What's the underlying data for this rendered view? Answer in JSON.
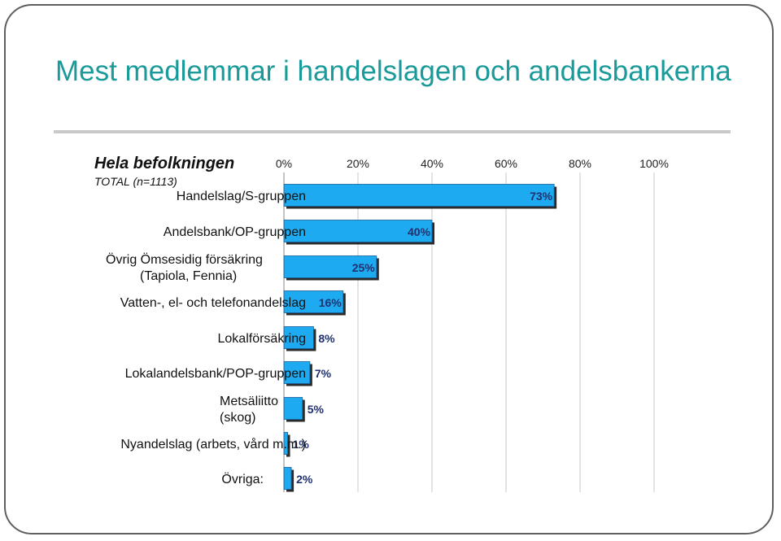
{
  "slide": {
    "title": "Mest medlemmar i handelslagen och andelsbankerna",
    "heading": "Hela befolkningen",
    "subheading": "TOTAL (n=1113)"
  },
  "colors": {
    "bar": "#1eaaf0",
    "title": "#1a9a9a",
    "value_label": "#1f3170"
  },
  "chart_data": {
    "type": "bar",
    "orientation": "horizontal",
    "title": "",
    "xlabel": "",
    "ylabel": "",
    "xlim": [
      0,
      100
    ],
    "ticks": [
      "0%",
      "20%",
      "40%",
      "60%",
      "80%",
      "100%"
    ],
    "grid": true,
    "categories": [
      [
        "Handelslag/S-gruppen"
      ],
      [
        "Andelsbank/OP-gruppen"
      ],
      [
        "Övrig Ömsesidig försäkring",
        "(Tapiola, Fennia)"
      ],
      [
        "Vatten-, el- och telefonandelslag"
      ],
      [
        "Lokalförsäkring"
      ],
      [
        "Lokalandelsbank/POP-gruppen"
      ],
      [
        "Metsäliitto",
        "(skog)"
      ],
      [
        "Nyandelslag (arbets, vård m.m.)"
      ],
      [
        "Övriga:"
      ]
    ],
    "values": [
      73,
      40,
      25,
      16,
      8,
      7,
      5,
      1,
      2
    ],
    "labels": [
      "73%",
      "40%",
      "25%",
      "16%",
      "8%",
      "7%",
      "5%",
      "1%",
      "2%"
    ]
  }
}
